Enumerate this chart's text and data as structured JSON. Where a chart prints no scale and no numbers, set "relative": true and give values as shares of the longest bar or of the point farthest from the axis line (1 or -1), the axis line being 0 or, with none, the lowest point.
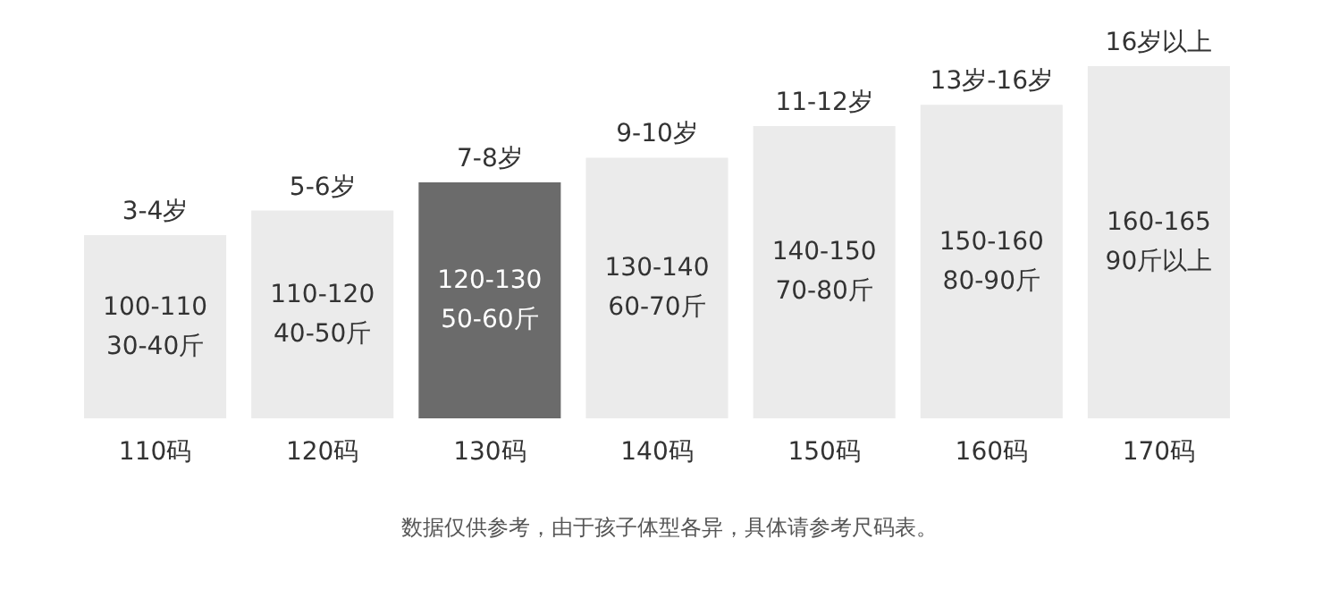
{
  "chart_data": {
    "type": "bar",
    "relative": true,
    "categories": [
      "110码",
      "120码",
      "130码",
      "140码",
      "150码",
      "160码",
      "170码"
    ],
    "values": [
      0.52,
      0.59,
      0.67,
      0.74,
      0.83,
      0.89,
      1
    ],
    "colors": [
      "#ebebeb",
      "#ebebeb",
      "#6b6b6b",
      "#ebebeb",
      "#ebebeb",
      "#ebebeb",
      "#ebebeb"
    ],
    "annotations": [
      {
        "text": "3-4岁",
        "x": "110码",
        "y": 0.52
      },
      {
        "text": "5-6岁",
        "x": "120码",
        "y": 0.59
      },
      {
        "text": "7-8岁",
        "x": "130码",
        "y": 0.67
      },
      {
        "text": "9-10岁",
        "x": "140码",
        "y": 0.74
      },
      {
        "text": "11-12岁",
        "x": "150码",
        "y": 0.83
      },
      {
        "text": "13岁-16岁",
        "x": "160码",
        "y": 0.89
      },
      {
        "text": "16岁以上",
        "x": "170码",
        "y": 1
      },
      "100-110",
      "30-40斤",
      "110-120",
      "40-50斤",
      "120-130",
      "50-60斤",
      "130-140",
      "60-70斤",
      "140-150",
      "70-80斤",
      "150-160",
      "80-90斤",
      "160-165",
      "90斤以上",
      "数据仅供参考，由于孩子体型各异，具体请参考尺码表。"
    ]
  }
}
